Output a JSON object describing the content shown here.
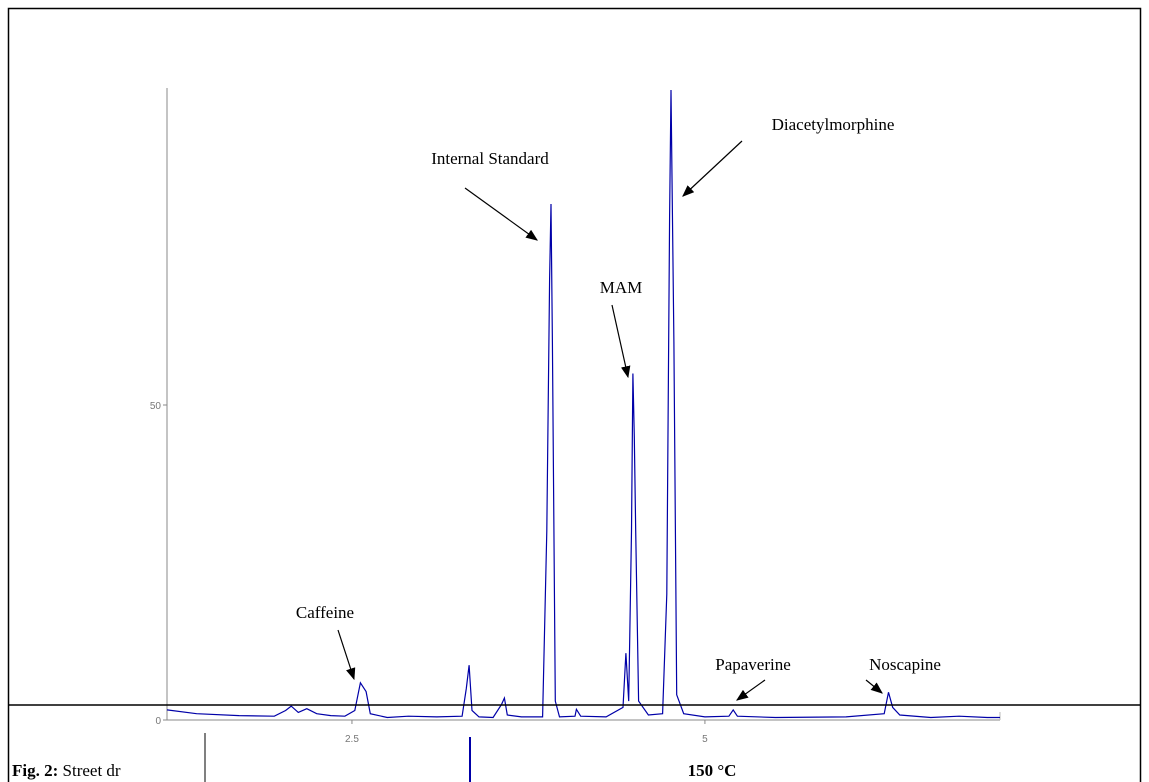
{
  "chart_data": {
    "type": "line",
    "x": [
      1.19,
      1.4,
      1.7,
      1.95,
      2.03,
      2.07,
      2.12,
      2.18,
      2.25,
      2.35,
      2.45,
      2.52,
      2.56,
      2.6,
      2.63,
      2.75,
      2.9,
      3.1,
      3.28,
      3.31,
      3.33,
      3.35,
      3.4,
      3.5,
      3.56,
      3.58,
      3.6,
      3.7,
      3.85,
      3.88,
      3.9,
      3.91,
      3.92,
      3.94,
      3.97,
      4.08,
      4.09,
      4.12,
      4.3,
      4.42,
      4.44,
      4.46,
      4.48,
      4.49,
      4.5,
      4.51,
      4.53,
      4.6,
      4.7,
      4.73,
      4.75,
      4.76,
      4.78,
      4.8,
      4.85,
      5.0,
      5.17,
      5.2,
      5.23,
      5.5,
      6.0,
      6.27,
      6.3,
      6.33,
      6.38,
      6.6,
      6.8,
      7.0,
      7.09
    ],
    "values": [
      1.6,
      1.0,
      0.7,
      0.6,
      1.5,
      2.2,
      1.2,
      1.8,
      1.0,
      0.7,
      0.6,
      1.5,
      5.9,
      4.5,
      1.0,
      0.4,
      0.6,
      0.5,
      0.6,
      5.0,
      8.7,
      1.5,
      0.5,
      0.4,
      2.5,
      3.5,
      0.8,
      0.5,
      0.5,
      30,
      70,
      81.9,
      60,
      3,
      0.5,
      0.6,
      1.7,
      0.6,
      0.5,
      2,
      10.6,
      3,
      30,
      55,
      45,
      30,
      3,
      0.8,
      1.0,
      20,
      80,
      100,
      60,
      4,
      1,
      0.5,
      0.6,
      1.6,
      0.6,
      0.4,
      0.5,
      1.0,
      4.4,
      2.0,
      0.8,
      0.4,
      0.6,
      0.4,
      0.4
    ],
    "color": "#0000a8",
    "xlim": [
      1.19,
      7.09
    ],
    "xticks": [
      2.5,
      5
    ],
    "ylim": [
      0,
      100
    ],
    "yticks": [
      0,
      50
    ],
    "annotations": [
      {
        "text": "Caffeine"
      },
      {
        "text": "Internal Standard"
      },
      {
        "text": "MAM"
      },
      {
        "text": "Diacetylmorphine"
      },
      {
        "text": "Papaverine"
      },
      {
        "text": "Noscapine"
      }
    ]
  },
  "caption": {
    "label": "Fig. 2:",
    "text": "Street dr"
  },
  "lower_panel_label": "150 °C"
}
